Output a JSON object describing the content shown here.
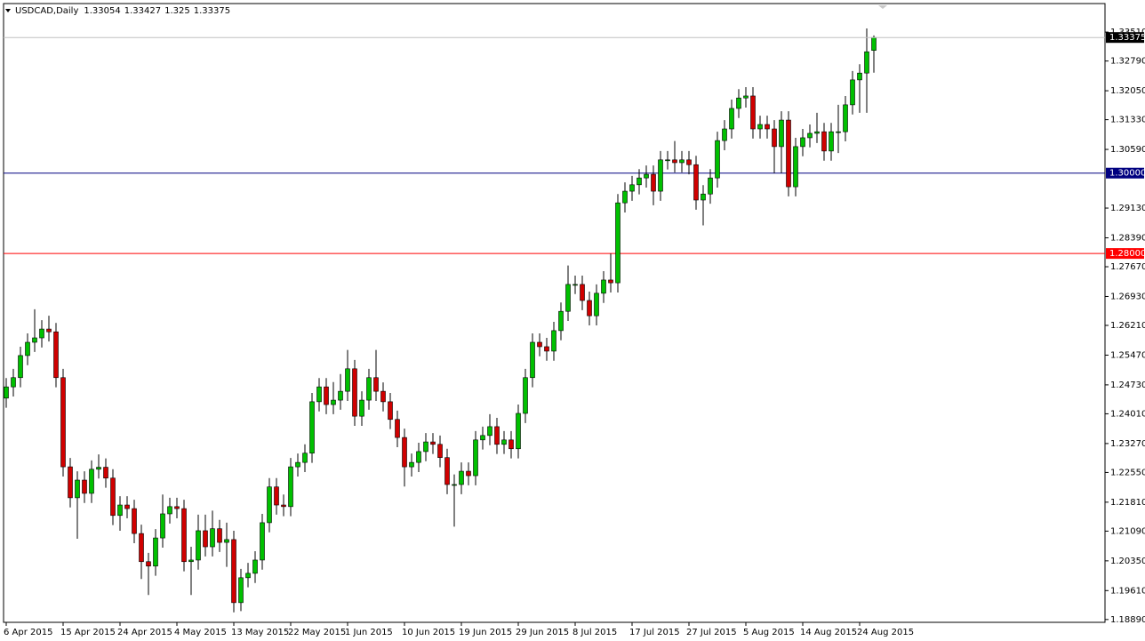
{
  "chart_data": {
    "type": "candlestick",
    "symbol": "USDCAD,Daily",
    "up_color": "#00c000",
    "down_color": "#d00000",
    "wick_color": "#000000",
    "open": [
      1.244,
      1.2468,
      1.2491,
      1.2546,
      1.2579,
      1.259,
      1.2612,
      1.2605,
      1.2491,
      1.2269,
      1.2192,
      1.2236,
      1.2203,
      1.2263,
      1.2268,
      1.2241,
      1.2148,
      1.2174,
      1.2165,
      1.2103,
      1.2033,
      1.2022,
      1.2092,
      1.2152,
      1.217,
      1.2165,
      1.2033,
      1.2037,
      1.211,
      1.207,
      1.2115,
      1.2081,
      1.2088,
      1.1931,
      1.1993,
      1.2004,
      1.2037,
      1.213,
      1.2219,
      1.2174,
      1.217,
      1.2269,
      1.228,
      1.2303,
      1.2431,
      1.2468,
      1.2424,
      1.2435,
      1.2457,
      1.2513,
      1.2395,
      1.2435,
      1.2491,
      1.2457,
      1.2431,
      1.2387,
      1.2342,
      1.2269,
      1.228,
      1.2307,
      1.2331,
      1.2325,
      1.2292,
      1.2225,
      1.2225,
      1.2258,
      1.2247,
      1.2336,
      1.2347,
      1.2369,
      1.2325,
      1.2336,
      1.2314,
      1.2402,
      1.2491,
      1.2579,
      1.2568,
      1.2557,
      1.2608,
      1.2656,
      1.2723,
      1.2723,
      1.2683,
      1.2645,
      1.2701,
      1.2734,
      1.2727,
      1.2926,
      1.2955,
      1.2971,
      1.2988,
      1.2997,
      1.2955,
      1.3033,
      1.3033,
      1.3026,
      1.3033,
      1.3021,
      1.2933,
      1.2948,
      1.2988,
      1.3081,
      1.311,
      1.3161,
      1.3187,
      1.3192,
      1.311,
      1.3121,
      1.311,
      1.3066,
      1.3132,
      1.2966,
      1.3066,
      1.3088,
      1.3099,
      1.3103,
      1.3055,
      1.3103,
      1.3103,
      1.317,
      1.3232,
      1.3249,
      1.33054
    ],
    "high": [
      1.249,
      1.2513,
      1.2568,
      1.2601,
      1.2661,
      1.2634,
      1.2645,
      1.2627,
      1.2513,
      1.2291,
      1.2258,
      1.2258,
      1.2285,
      1.23,
      1.229,
      1.2263,
      1.2196,
      1.2196,
      1.2187,
      1.2125,
      1.2055,
      1.2114,
      1.22,
      1.2192,
      1.2192,
      1.2187,
      1.207,
      1.215,
      1.215,
      1.216,
      1.2137,
      1.213,
      1.211,
      1.2015,
      1.203,
      1.2059,
      1.2152,
      1.2241,
      1.2241,
      1.22,
      1.2291,
      1.2302,
      1.2325,
      1.2453,
      1.249,
      1.249,
      1.248,
      1.25,
      1.256,
      1.2535,
      1.2457,
      1.2513,
      1.256,
      1.2479,
      1.2453,
      1.2409,
      1.2364,
      1.2302,
      1.2329,
      1.2353,
      1.2353,
      1.2347,
      1.2314,
      1.225,
      1.228,
      1.228,
      1.2358,
      1.2369,
      1.24,
      1.2391,
      1.2358,
      1.2358,
      1.2424,
      1.2513,
      1.2601,
      1.2601,
      1.259,
      1.263,
      1.2678,
      1.277,
      1.2745,
      1.2745,
      1.2705,
      1.2723,
      1.2756,
      1.28,
      1.2948,
      1.2977,
      1.2993,
      1.301,
      1.3019,
      1.3019,
      1.3055,
      1.3055,
      1.308,
      1.3055,
      1.3055,
      1.3043,
      1.297,
      1.301,
      1.3103,
      1.3132,
      1.3183,
      1.3209,
      1.3214,
      1.3214,
      1.3143,
      1.3143,
      1.3132,
      1.3154,
      1.3154,
      1.3088,
      1.311,
      1.3121,
      1.315,
      1.3125,
      1.3125,
      1.317,
      1.3192,
      1.3254,
      1.3271,
      1.336,
      1.33427
    ],
    "low": [
      1.2416,
      1.2444,
      1.2467,
      1.2522,
      1.2555,
      1.2566,
      1.2581,
      1.2467,
      1.2245,
      1.2168,
      1.209,
      1.2179,
      1.2179,
      1.224,
      1.2217,
      1.2124,
      1.211,
      1.2141,
      1.2079,
      1.199,
      1.195,
      1.1998,
      1.2068,
      1.2128,
      1.2141,
      1.2009,
      1.195,
      1.2013,
      1.2046,
      1.2046,
      1.2057,
      1.202,
      1.1907,
      1.191,
      1.1969,
      1.198,
      1.2013,
      1.2106,
      1.215,
      1.2146,
      1.2146,
      1.2245,
      1.2256,
      1.2279,
      1.2407,
      1.24,
      1.24,
      1.2411,
      1.2433,
      1.2371,
      1.2371,
      1.2411,
      1.2433,
      1.2407,
      1.2363,
      1.2318,
      1.222,
      1.2245,
      1.2256,
      1.2283,
      1.2301,
      1.2268,
      1.2201,
      1.212,
      1.2201,
      1.2223,
      1.2223,
      1.2312,
      1.2323,
      1.2301,
      1.2301,
      1.229,
      1.229,
      1.2378,
      1.2467,
      1.2544,
      1.2533,
      1.2533,
      1.2584,
      1.2632,
      1.2699,
      1.2659,
      1.2621,
      1.2621,
      1.2677,
      1.2703,
      1.2703,
      1.2902,
      1.2931,
      1.2947,
      1.2964,
      1.292,
      1.2931,
      1.3009,
      1.3002,
      1.3002,
      1.2997,
      1.2909,
      1.287,
      1.2924,
      1.2964,
      1.3057,
      1.3086,
      1.3137,
      1.3163,
      1.3086,
      1.3086,
      1.3086,
      1.3,
      1.3,
      1.2942,
      1.2942,
      1.3042,
      1.3064,
      1.3075,
      1.3031,
      1.3031,
      1.305,
      1.3079,
      1.3146,
      1.315,
      1.315,
      1.325
    ],
    "close": [
      1.2468,
      1.2491,
      1.2546,
      1.2579,
      1.259,
      1.2612,
      1.2605,
      1.2491,
      1.2269,
      1.2192,
      1.2236,
      1.2203,
      1.2263,
      1.2268,
      1.2241,
      1.2148,
      1.2174,
      1.2165,
      1.2103,
      1.2033,
      1.2022,
      1.2092,
      1.2152,
      1.217,
      1.2165,
      1.2033,
      1.2037,
      1.211,
      1.207,
      1.2115,
      1.2081,
      1.2088,
      1.1931,
      1.1993,
      1.2004,
      1.2037,
      1.213,
      1.2219,
      1.2174,
      1.217,
      1.2269,
      1.228,
      1.2303,
      1.2431,
      1.2468,
      1.2424,
      1.2435,
      1.2457,
      1.2513,
      1.2395,
      1.2435,
      1.2491,
      1.2457,
      1.2431,
      1.2387,
      1.2342,
      1.2269,
      1.228,
      1.2307,
      1.2331,
      1.2325,
      1.2292,
      1.2225,
      1.2225,
      1.2258,
      1.2247,
      1.2336,
      1.2347,
      1.2369,
      1.2325,
      1.2336,
      1.2314,
      1.2402,
      1.2491,
      1.2579,
      1.2568,
      1.2557,
      1.2608,
      1.2656,
      1.2723,
      1.2723,
      1.2683,
      1.2645,
      1.2701,
      1.2734,
      1.2727,
      1.2926,
      1.2955,
      1.2971,
      1.2988,
      1.2997,
      1.2955,
      1.3033,
      1.3033,
      1.3026,
      1.3033,
      1.3021,
      1.2933,
      1.2948,
      1.2988,
      1.3081,
      1.311,
      1.3161,
      1.3187,
      1.3192,
      1.311,
      1.3121,
      1.311,
      1.3066,
      1.3132,
      1.2966,
      1.3066,
      1.3088,
      1.3099,
      1.3103,
      1.3055,
      1.3103,
      1.3103,
      1.317,
      1.3232,
      1.3249,
      1.3302,
      1.33375
    ],
    "ylim": [
      1.1882,
      1.3422
    ],
    "yticks": [
      {
        "value": 1.3351,
        "label": "1.33510"
      },
      {
        "value": 1.3279,
        "label": "1.32790"
      },
      {
        "value": 1.3205,
        "label": "1.32050"
      },
      {
        "value": 1.3133,
        "label": "1.31330"
      },
      {
        "value": 1.3059,
        "label": "1.30590"
      },
      {
        "value": 1.2913,
        "label": "1.29130"
      },
      {
        "value": 1.2839,
        "label": "1.28390"
      },
      {
        "value": 1.2767,
        "label": "1.27670"
      },
      {
        "value": 1.2693,
        "label": "1.26930"
      },
      {
        "value": 1.2621,
        "label": "1.26210"
      },
      {
        "value": 1.2547,
        "label": "1.25470"
      },
      {
        "value": 1.2473,
        "label": "1.24730"
      },
      {
        "value": 1.2401,
        "label": "1.24010"
      },
      {
        "value": 1.2327,
        "label": "1.23270"
      },
      {
        "value": 1.2255,
        "label": "1.22550"
      },
      {
        "value": 1.2181,
        "label": "1.21810"
      },
      {
        "value": 1.2109,
        "label": "1.21090"
      },
      {
        "value": 1.2035,
        "label": "1.20350"
      },
      {
        "value": 1.1961,
        "label": "1.19610"
      },
      {
        "value": 1.1889,
        "label": "1.18890"
      }
    ],
    "xticks": [
      {
        "value": 0,
        "label": "6 Apr 2015"
      },
      {
        "value": 8,
        "label": "15 Apr 2015"
      },
      {
        "value": 16,
        "label": "24 Apr 2015"
      },
      {
        "value": 24,
        "label": "4 May 2015"
      },
      {
        "value": 32,
        "label": "13 May 2015"
      },
      {
        "value": 40,
        "label": "22 May 2015"
      },
      {
        "value": 48,
        "label": "1 Jun 2015"
      },
      {
        "value": 56,
        "label": "10 Jun 2015"
      },
      {
        "value": 64,
        "label": "19 Jun 2015"
      },
      {
        "value": 72,
        "label": "29 Jun 2015"
      },
      {
        "value": 80,
        "label": "8 Jul 2015"
      },
      {
        "value": 88,
        "label": "17 Jul 2015"
      },
      {
        "value": 96,
        "label": "27 Jul 2015"
      },
      {
        "value": 104,
        "label": "5 Aug 2015"
      },
      {
        "value": 112,
        "label": "14 Aug 2015"
      },
      {
        "value": 120,
        "label": "24 Aug 2015"
      }
    ],
    "hlines": [
      {
        "value": 1.3,
        "label": "1.30000",
        "color": "#000080"
      },
      {
        "value": 1.28,
        "label": "1.28000",
        "color": "#ff0000"
      }
    ],
    "price_line_color": "#c0c0c0"
  }
}
